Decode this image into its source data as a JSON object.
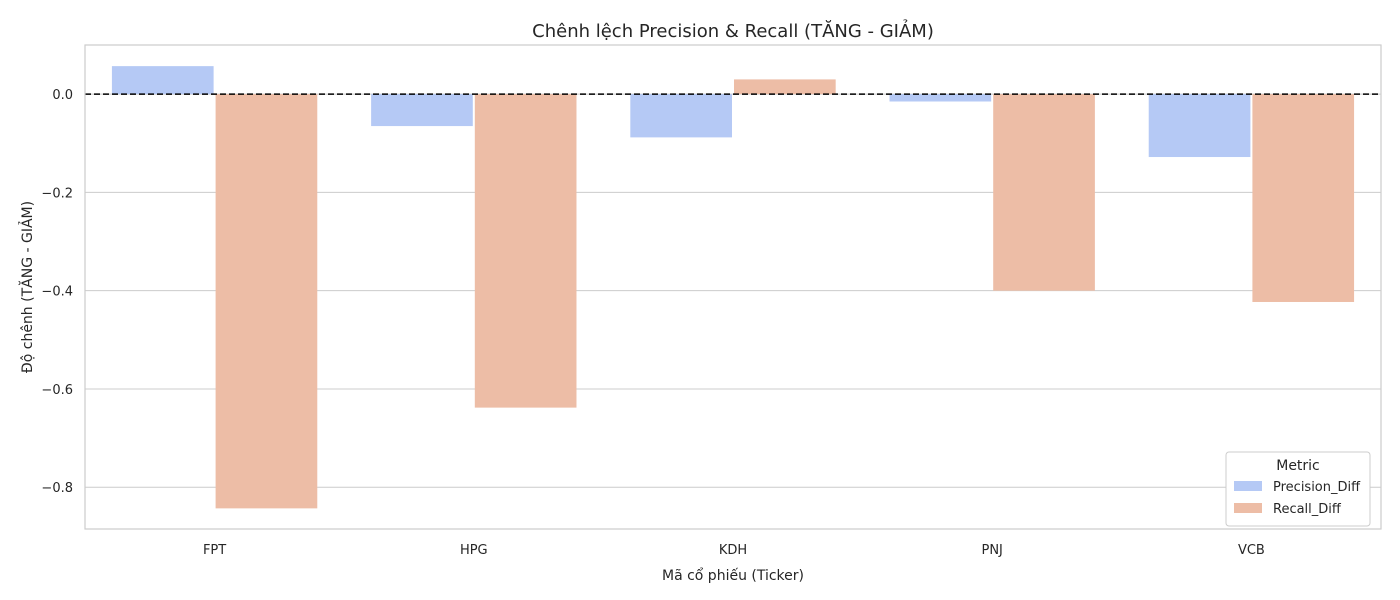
{
  "chart_data": {
    "type": "bar",
    "title": "Chênh lệch Precision & Recall (TĂNG - GIẢM)",
    "xlabel": "Mã cổ phiếu (Ticker)",
    "ylabel": "Độ chênh (TĂNG - GIẢM)",
    "categories": [
      "FPT",
      "HPG",
      "KDH",
      "PNJ",
      "VCB"
    ],
    "series": [
      {
        "name": "Precision_Diff",
        "color": "#b5c9f5",
        "values": [
          0.057,
          -0.065,
          -0.088,
          -0.015,
          -0.128
        ]
      },
      {
        "name": "Recall_Diff",
        "color": "#edbda6",
        "values": [
          -0.843,
          -0.638,
          0.03,
          -0.4,
          -0.423
        ]
      }
    ],
    "ylim": [
      -0.885,
      0.1
    ],
    "yticks": [
      0.0,
      -0.2,
      -0.4,
      -0.6,
      -0.8
    ],
    "ytick_labels": [
      "0.0",
      "−0.2",
      "−0.4",
      "−0.6",
      "−0.8"
    ],
    "grid": true,
    "reference_line": 0,
    "legend": {
      "title": "Metric",
      "placement": "lower-right"
    }
  }
}
